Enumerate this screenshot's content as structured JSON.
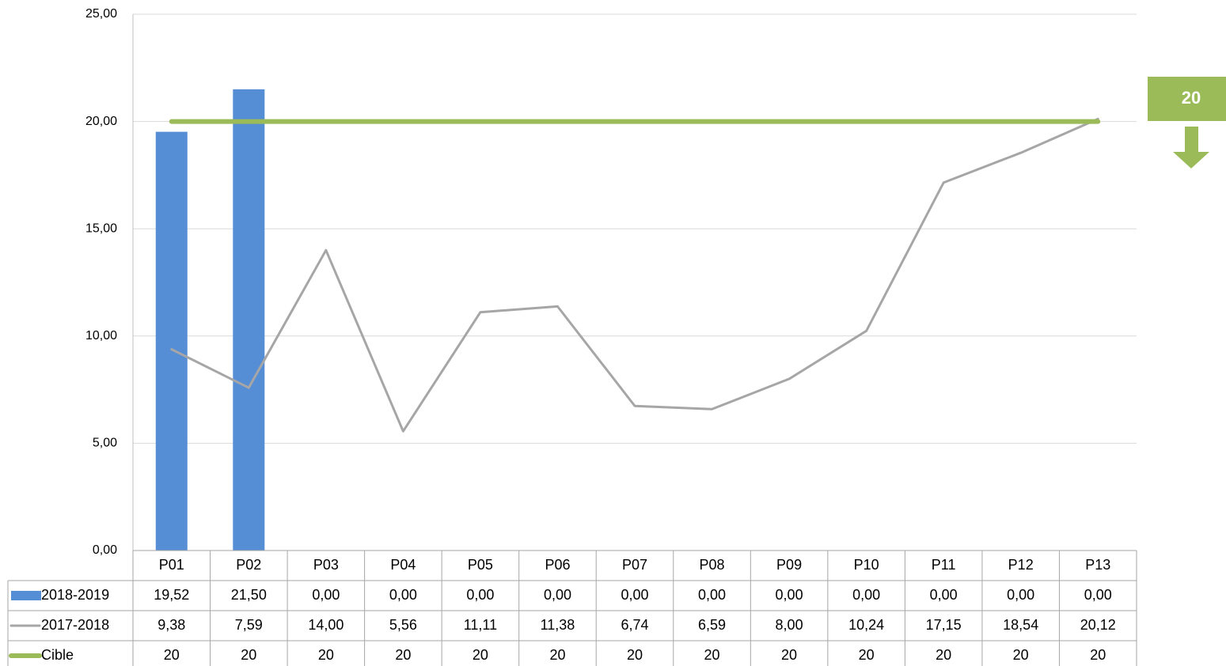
{
  "chart_data": {
    "type": "bar",
    "categories": [
      "P01",
      "P02",
      "P03",
      "P04",
      "P05",
      "P06",
      "P07",
      "P08",
      "P09",
      "P10",
      "P11",
      "P12",
      "P13"
    ],
    "series": [
      {
        "name": "2018-2019",
        "type": "bar",
        "color": "#558ed5",
        "values": [
          19.52,
          21.5,
          0,
          0,
          0,
          0,
          0,
          0,
          0,
          0,
          0,
          0,
          0
        ],
        "value_labels": [
          "19,52",
          "21,50",
          "0,00",
          "0,00",
          "0,00",
          "0,00",
          "0,00",
          "0,00",
          "0,00",
          "0,00",
          "0,00",
          "0,00",
          "0,00"
        ]
      },
      {
        "name": "2017-2018",
        "type": "line",
        "color": "#a6a6a6",
        "values": [
          9.38,
          7.59,
          14,
          5.56,
          11.11,
          11.38,
          6.74,
          6.59,
          8,
          10.24,
          17.15,
          18.54,
          20.12
        ],
        "value_labels": [
          "9,38",
          "7,59",
          "14,00",
          "5,56",
          "11,11",
          "11,38",
          "6,74",
          "6,59",
          "8,00",
          "10,24",
          "17,15",
          "18,54",
          "20,12"
        ]
      },
      {
        "name": "Cible",
        "type": "line",
        "color": "#9bbb59",
        "values": [
          20,
          20,
          20,
          20,
          20,
          20,
          20,
          20,
          20,
          20,
          20,
          20,
          20
        ]
      }
    ],
    "ylim": [
      0,
      25
    ],
    "yticks": [
      {
        "value": 0,
        "label": "0,00"
      },
      {
        "value": 5,
        "label": "5,00"
      },
      {
        "value": 10,
        "label": "10,00"
      },
      {
        "value": 15,
        "label": "15,00"
      },
      {
        "value": 20,
        "label": "20,00"
      },
      {
        "value": 25,
        "label": "25,00"
      }
    ],
    "grid": true,
    "annotation": "20"
  }
}
